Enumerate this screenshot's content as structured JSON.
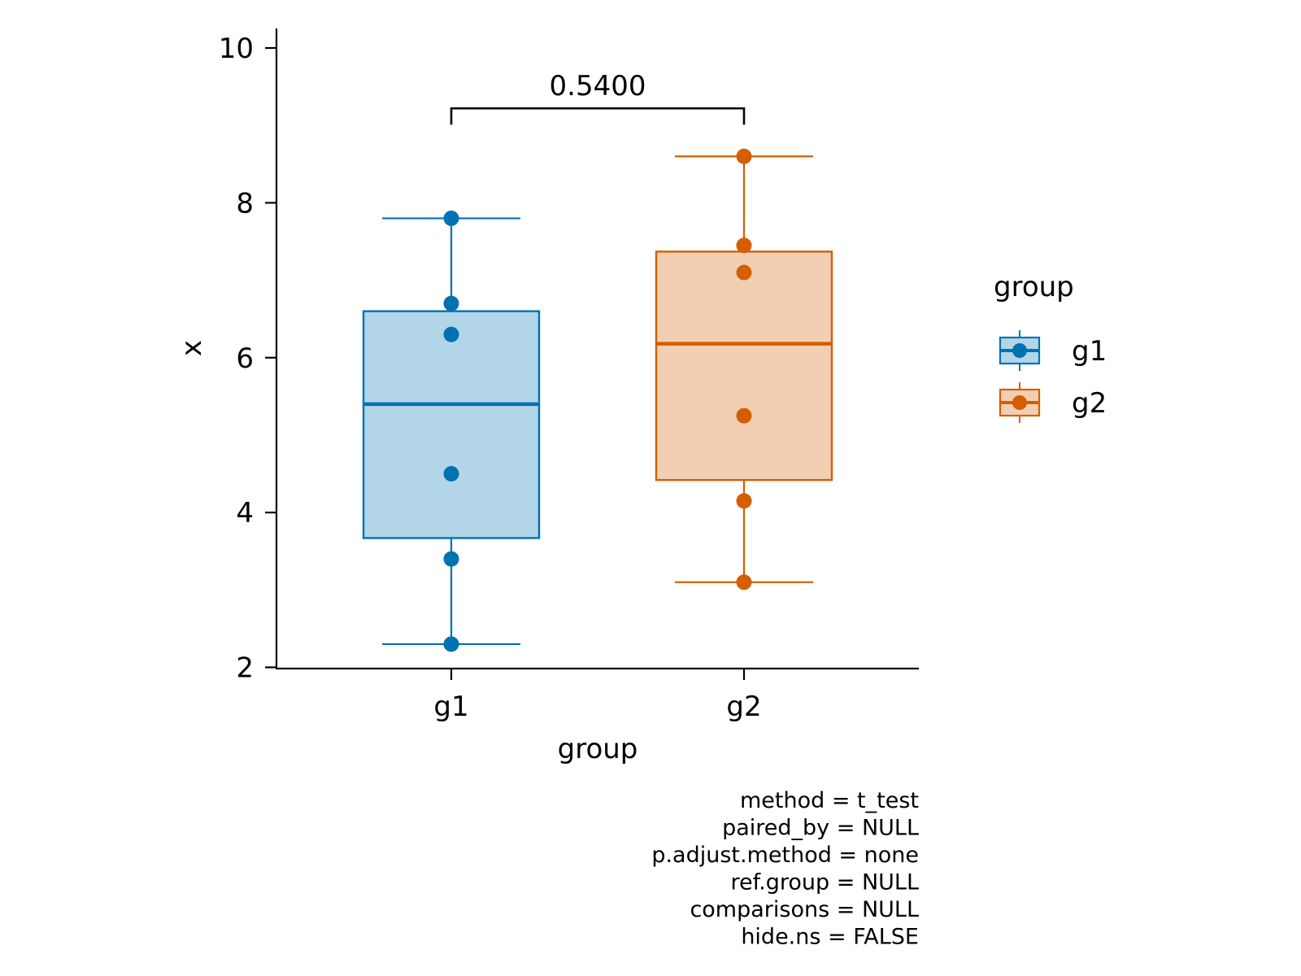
{
  "chart_data": {
    "type": "boxplot",
    "xlabel": "group",
    "ylabel": "x",
    "categories": [
      "g1",
      "g2"
    ],
    "ylim": [
      2,
      10
    ],
    "yticks": [
      2,
      4,
      6,
      8,
      10
    ],
    "series": [
      {
        "name": "g1",
        "color": "#0072B2",
        "fill": "#B3D5E8",
        "box": {
          "min": 2.3,
          "q1": 3.67,
          "median": 5.4,
          "q3": 6.6,
          "max": 7.8
        },
        "points": [
          2.3,
          3.4,
          4.5,
          6.3,
          6.7,
          7.8
        ]
      },
      {
        "name": "g2",
        "color": "#D55E00",
        "fill": "#F2CFB3",
        "box": {
          "min": 3.1,
          "q1": 4.42,
          "median": 6.18,
          "q3": 7.37,
          "max": 8.6
        },
        "points": [
          3.1,
          4.15,
          5.25,
          7.1,
          7.45,
          8.6
        ]
      }
    ],
    "comparison": {
      "groups": [
        "g1",
        "g2"
      ],
      "label": "0.5400",
      "y": 9.22
    },
    "legend": {
      "title": "group",
      "items": [
        "g1",
        "g2"
      ],
      "placement": "right"
    },
    "caption_lines": [
      "method = t_test",
      "paired_by = NULL",
      "p.adjust.method = none",
      "ref.group = NULL",
      "comparisons = NULL",
      "hide.ns = FALSE"
    ],
    "grid": false
  }
}
